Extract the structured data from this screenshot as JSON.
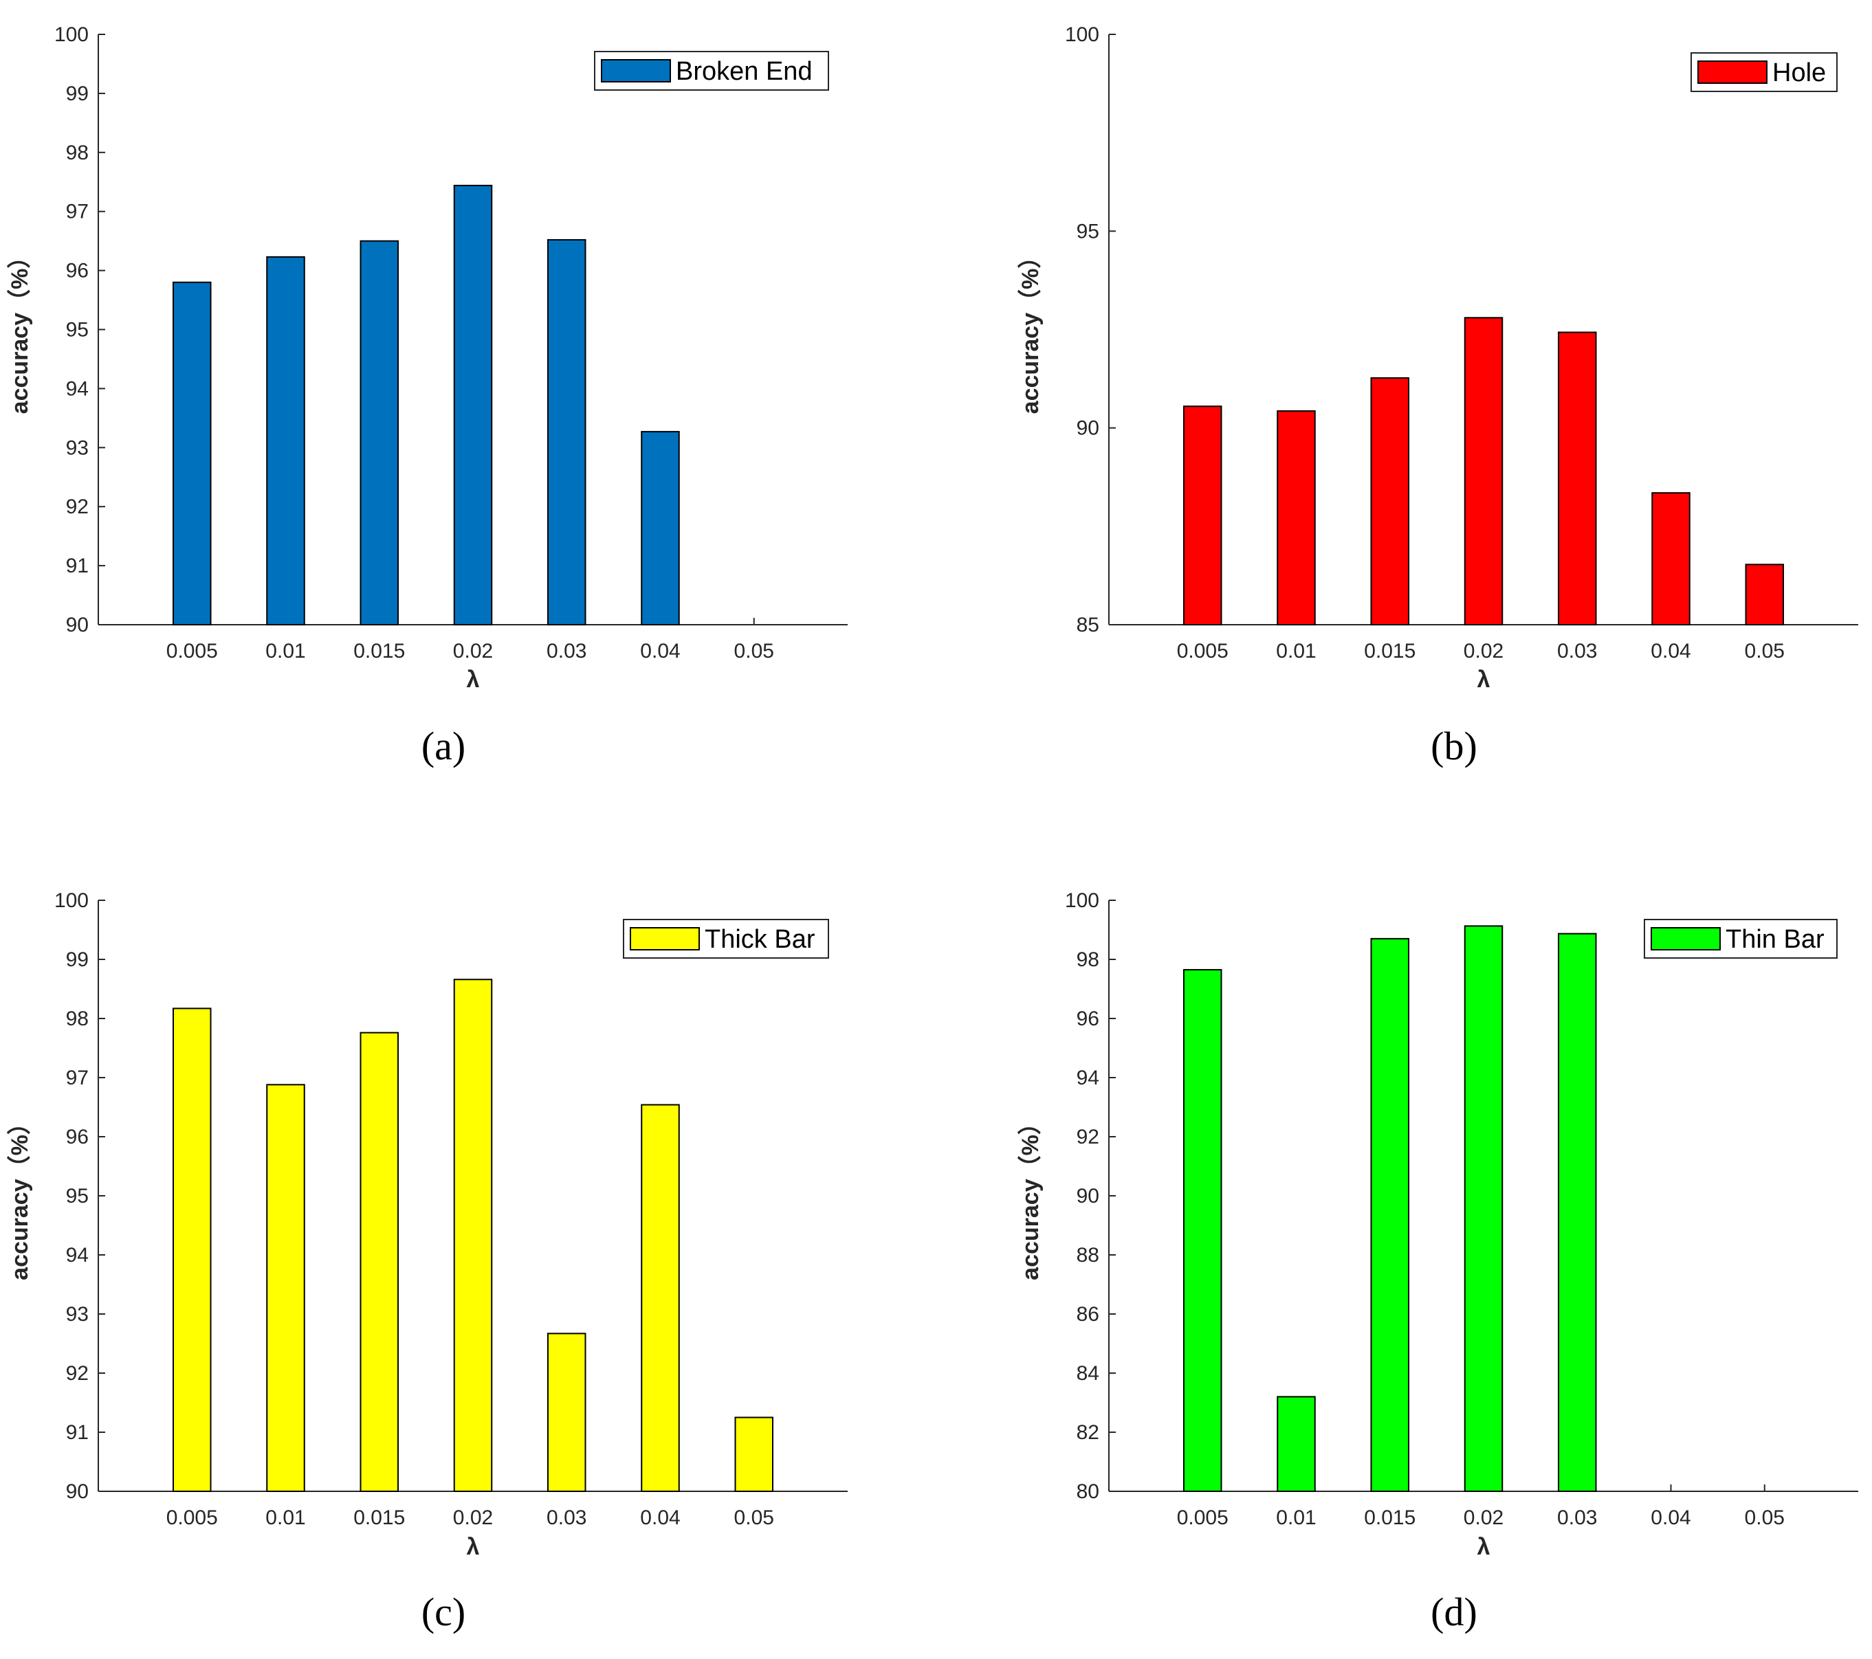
{
  "chart_data": [
    {
      "type": "bar",
      "legend": "Broken End",
      "color": "#0072BD",
      "categories": [
        "0.005",
        "0.01",
        "0.015",
        "0.02",
        "0.03",
        "0.04",
        "0.05"
      ],
      "values": [
        95.8,
        96.23,
        96.5,
        97.44,
        96.52,
        93.27,
        null
      ],
      "ylim": [
        90,
        100
      ],
      "yticks": [
        "90",
        "91",
        "92",
        "93",
        "94",
        "95",
        "96",
        "97",
        "98",
        "99",
        "100"
      ],
      "xlabel": "λ",
      "ylabel": "accuracy（%）",
      "caption": "(a)",
      "legend_position": "top-right"
    },
    {
      "type": "bar",
      "legend": "Hole",
      "color": "#FF0000",
      "categories": [
        "0.005",
        "0.01",
        "0.015",
        "0.02",
        "0.03",
        "0.04",
        "0.05"
      ],
      "values": [
        90.55,
        90.43,
        91.27,
        92.8,
        92.43,
        88.35,
        86.53
      ],
      "ylim": [
        85,
        100
      ],
      "yticks": [
        "85",
        "90",
        "95",
        "100"
      ],
      "xlabel": "λ",
      "ylabel": "accuracy（%）",
      "caption": "(b)",
      "legend_position": "top-right"
    },
    {
      "type": "bar",
      "legend": "Thick Bar",
      "color": "#FFFF00",
      "categories": [
        "0.005",
        "0.01",
        "0.015",
        "0.02",
        "0.03",
        "0.04",
        "0.05"
      ],
      "values": [
        98.17,
        96.88,
        97.76,
        98.66,
        92.67,
        96.54,
        91.25
      ],
      "ylim": [
        90,
        100
      ],
      "yticks": [
        "90",
        "91",
        "92",
        "93",
        "94",
        "95",
        "96",
        "97",
        "98",
        "99",
        "100"
      ],
      "xlabel": "λ",
      "ylabel": "accuracy（%）",
      "caption": "(c)",
      "legend_position": "top-right"
    },
    {
      "type": "bar",
      "legend": "Thin Bar",
      "color": "#00FF00",
      "categories": [
        "0.005",
        "0.01",
        "0.015",
        "0.02",
        "0.03",
        "0.04",
        "0.05"
      ],
      "values": [
        97.65,
        83.2,
        98.7,
        99.13,
        98.87,
        null,
        null
      ],
      "ylim": [
        80,
        100
      ],
      "yticks": [
        "80",
        "82",
        "84",
        "86",
        "88",
        "90",
        "92",
        "94",
        "96",
        "98",
        "100"
      ],
      "xlabel": "λ",
      "ylabel": "accuracy（%）",
      "caption": "(d)",
      "legend_position": "top-right"
    }
  ]
}
